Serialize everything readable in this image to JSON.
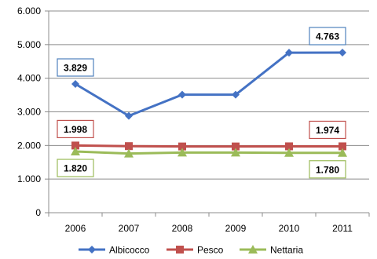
{
  "chart_data": {
    "type": "line",
    "x": [
      "2006",
      "2007",
      "2008",
      "2009",
      "2010",
      "2011"
    ],
    "ylim": [
      0,
      6000
    ],
    "yticks": [
      0,
      1000,
      2000,
      3000,
      4000,
      5000,
      6000
    ],
    "ytick_labels": [
      "0",
      "1.000",
      "2.000",
      "3.000",
      "4.000",
      "5.000",
      "6.000"
    ],
    "grid": true,
    "legend_position": "bottom",
    "series": [
      {
        "name": "Albicocco",
        "color": "#4472C4",
        "marker": "diamond",
        "values": [
          3829,
          2880,
          3510,
          3510,
          4760,
          4763
        ]
      },
      {
        "name": "Pesco",
        "color": "#C0504D",
        "marker": "square",
        "values": [
          1998,
          1980,
          1970,
          1970,
          1974,
          1974
        ]
      },
      {
        "name": "Nettaria",
        "color": "#9BBB59",
        "marker": "triangle",
        "values": [
          1820,
          1760,
          1790,
          1790,
          1780,
          1780
        ]
      }
    ],
    "data_labels": [
      {
        "series": 0,
        "index": 0,
        "text": "3.829",
        "box": "#4F81BD",
        "placement": "above"
      },
      {
        "series": 0,
        "index": 5,
        "text": "4.763",
        "box": "#4F81BD",
        "placement": "above-left"
      },
      {
        "series": 1,
        "index": 0,
        "text": "1.998",
        "box": "#C0504D",
        "placement": "above"
      },
      {
        "series": 1,
        "index": 5,
        "text": "1.974",
        "box": "#C0504D",
        "placement": "above-left"
      },
      {
        "series": 2,
        "index": 0,
        "text": "1.820",
        "box": "#9BBB59",
        "placement": "below"
      },
      {
        "series": 2,
        "index": 5,
        "text": "1.780",
        "box": "#9BBB59",
        "placement": "below-left"
      }
    ]
  }
}
